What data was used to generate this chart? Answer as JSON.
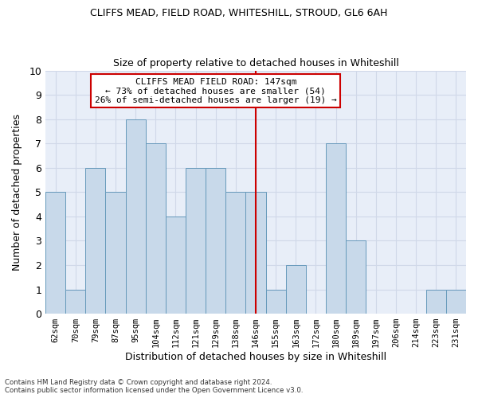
{
  "title1": "CLIFFS MEAD, FIELD ROAD, WHITESHILL, STROUD, GL6 6AH",
  "title2": "Size of property relative to detached houses in Whiteshill",
  "xlabel": "Distribution of detached houses by size in Whiteshill",
  "ylabel": "Number of detached properties",
  "categories": [
    "62sqm",
    "70sqm",
    "79sqm",
    "87sqm",
    "95sqm",
    "104sqm",
    "112sqm",
    "121sqm",
    "129sqm",
    "138sqm",
    "146sqm",
    "155sqm",
    "163sqm",
    "172sqm",
    "180sqm",
    "189sqm",
    "197sqm",
    "206sqm",
    "214sqm",
    "223sqm",
    "231sqm"
  ],
  "values": [
    5,
    1,
    6,
    5,
    8,
    7,
    4,
    6,
    6,
    5,
    5,
    1,
    2,
    0,
    7,
    3,
    0,
    0,
    0,
    1,
    1
  ],
  "bar_color": "#c8d9ea",
  "bar_edge_color": "#6699bb",
  "highlight_index": 10,
  "highlight_color": "#cc0000",
  "annotation_line1": "CLIFFS MEAD FIELD ROAD: 147sqm",
  "annotation_line2": "← 73% of detached houses are smaller (54)",
  "annotation_line3": "26% of semi-detached houses are larger (19) →",
  "annotation_box_color": "#ffffff",
  "annotation_box_edge": "#cc0000",
  "footnote1": "Contains HM Land Registry data © Crown copyright and database right 2024.",
  "footnote2": "Contains public sector information licensed under the Open Government Licence v3.0.",
  "ylim": [
    0,
    10
  ],
  "yticks": [
    0,
    1,
    2,
    3,
    4,
    5,
    6,
    7,
    8,
    9,
    10
  ],
  "grid_color": "#d0d8e8",
  "bg_color": "#e8eef8"
}
